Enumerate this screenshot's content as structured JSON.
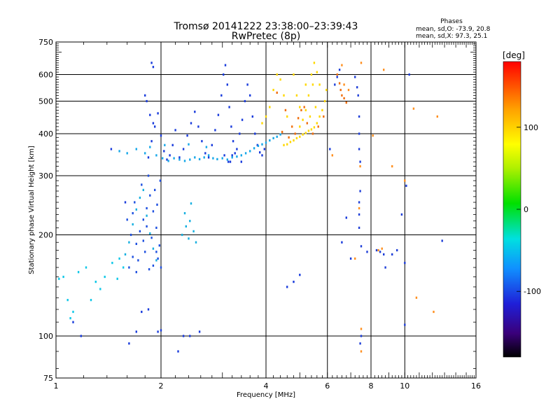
{
  "header": {
    "title": "Tromsø 20141222 23:38:00–23:39:43",
    "subtitle": "RwPretec (8p)",
    "phases_title": "Phases",
    "phases_o": "mean, sd,O: -73.9, 20.8",
    "phases_x": "mean, sd,X:  97.3, 25.1"
  },
  "chart_data": {
    "type": "scatter",
    "title": "Tromsø 20141222 23:38:00–23:39:43",
    "subtitle": "RwPretec (8p)",
    "xlabel": "Frequency [MHz]",
    "ylabel": "Stationary phase Virtual Height [km]",
    "x_scale": "log",
    "y_scale": "log",
    "xlim": [
      1,
      16
    ],
    "ylim": [
      75,
      750
    ],
    "x_major_ticks": [
      1,
      2,
      4,
      6,
      8,
      10,
      16
    ],
    "y_major_ticks": [
      75,
      100,
      200,
      300,
      400,
      500,
      600,
      750
    ],
    "grid": true,
    "colorbar": {
      "label": "[deg]",
      "range": [
        -180,
        180
      ],
      "ticks": [
        -100,
        0,
        100
      ],
      "colormap": "rainbow"
    },
    "series": [
      {
        "role": "lower-layer-cloud-A",
        "color": "#1e50e0",
        "points": [
          [
            1.62,
            160
          ],
          [
            1.66,
            172
          ],
          [
            1.7,
            188
          ],
          [
            1.74,
            205
          ],
          [
            1.78,
            222
          ],
          [
            1.82,
            240
          ],
          [
            1.86,
            262
          ],
          [
            1.9,
            235
          ],
          [
            1.94,
            210
          ],
          [
            1.98,
            186
          ],
          [
            1.64,
            200
          ],
          [
            1.72,
            168
          ],
          [
            1.8,
            178
          ],
          [
            1.88,
            196
          ],
          [
            1.96,
            170
          ],
          [
            1.68,
            250
          ],
          [
            1.76,
            282
          ],
          [
            1.84,
            300
          ],
          [
            1.92,
            272
          ],
          [
            1.6,
            222
          ],
          [
            1.7,
            155
          ],
          [
            1.85,
            158
          ],
          [
            1.95,
            246
          ],
          [
            1.99,
            290
          ],
          [
            2.0,
            160
          ],
          [
            1.78,
            192
          ],
          [
            1.9,
            162
          ],
          [
            1.66,
            232
          ],
          [
            1.82,
            212
          ],
          [
            1.94,
            178
          ]
        ]
      },
      {
        "role": "lower-layer-cloud-B",
        "color": "#18b0e0",
        "points": [
          [
            1.58,
            175
          ],
          [
            1.62,
            190
          ],
          [
            1.66,
            215
          ],
          [
            1.7,
            238
          ],
          [
            1.74,
            258
          ],
          [
            1.78,
            272
          ],
          [
            1.82,
            228
          ],
          [
            1.86,
            202
          ],
          [
            1.9,
            182
          ],
          [
            1.94,
            168
          ],
          [
            2.3,
            200
          ],
          [
            2.36,
            212
          ],
          [
            2.42,
            220
          ],
          [
            2.48,
            205
          ],
          [
            2.52,
            190
          ],
          [
            2.34,
            232
          ],
          [
            2.44,
            248
          ],
          [
            2.4,
            195
          ]
        ]
      },
      {
        "role": "low-frequency-scatter",
        "color": "#10c8e8",
        "points": [
          [
            1.02,
            148
          ],
          [
            1.05,
            150
          ],
          [
            1.08,
            128
          ],
          [
            1.1,
            113
          ],
          [
            1.12,
            118
          ],
          [
            1.16,
            155
          ],
          [
            1.22,
            160
          ],
          [
            1.3,
            145
          ],
          [
            1.38,
            150
          ],
          [
            1.45,
            165
          ],
          [
            1.52,
            170
          ],
          [
            1.56,
            160
          ],
          [
            1.5,
            148
          ],
          [
            1.26,
            128
          ],
          [
            1.34,
            138
          ]
        ]
      },
      {
        "role": "upper-layer-main-blue",
        "color": "#1a3cdc",
        "points": [
          [
            1.84,
            340
          ],
          [
            1.88,
            380
          ],
          [
            1.92,
            420
          ],
          [
            1.96,
            460
          ],
          [
            2.0,
            395
          ],
          [
            2.04,
            355
          ],
          [
            2.08,
            335
          ],
          [
            2.12,
            345
          ],
          [
            2.16,
            370
          ],
          [
            2.2,
            410
          ],
          [
            2.26,
            340
          ],
          [
            2.32,
            360
          ],
          [
            2.38,
            395
          ],
          [
            2.44,
            430
          ],
          [
            2.5,
            465
          ],
          [
            2.56,
            420
          ],
          [
            2.62,
            380
          ],
          [
            2.68,
            350
          ],
          [
            2.74,
            340
          ],
          [
            2.8,
            370
          ],
          [
            2.86,
            410
          ],
          [
            2.92,
            455
          ],
          [
            2.98,
            520
          ],
          [
            3.02,
            600
          ],
          [
            3.06,
            640
          ],
          [
            3.1,
            560
          ],
          [
            3.14,
            480
          ],
          [
            3.18,
            420
          ],
          [
            3.22,
            380
          ],
          [
            3.26,
            350
          ],
          [
            3.3,
            360
          ],
          [
            3.36,
            400
          ],
          [
            3.42,
            440
          ],
          [
            3.48,
            500
          ],
          [
            3.54,
            560
          ],
          [
            3.6,
            520
          ],
          [
            3.66,
            450
          ],
          [
            3.72,
            400
          ],
          [
            3.78,
            370
          ],
          [
            3.84,
            352
          ],
          [
            3.9,
            345
          ],
          [
            3.96,
            360
          ],
          [
            1.82,
            500
          ],
          [
            1.86,
            455
          ],
          [
            1.9,
            430
          ],
          [
            3.04,
            345
          ],
          [
            3.12,
            330
          ],
          [
            3.2,
            345
          ]
        ]
      },
      {
        "role": "upper-layer-main-cyan",
        "color": "#18a8e8",
        "points": [
          [
            1.8,
            350
          ],
          [
            1.86,
            365
          ],
          [
            1.94,
            345
          ],
          [
            2.02,
            338
          ],
          [
            2.1,
            332
          ],
          [
            2.18,
            338
          ],
          [
            2.26,
            335
          ],
          [
            2.34,
            332
          ],
          [
            2.42,
            335
          ],
          [
            2.5,
            340
          ],
          [
            2.58,
            336
          ],
          [
            2.66,
            340
          ],
          [
            2.74,
            345
          ],
          [
            2.82,
            338
          ],
          [
            2.9,
            336
          ],
          [
            3.0,
            338
          ],
          [
            3.1,
            335
          ],
          [
            3.2,
            340
          ],
          [
            3.3,
            342
          ],
          [
            3.4,
            345
          ],
          [
            3.5,
            350
          ],
          [
            3.6,
            355
          ],
          [
            3.7,
            362
          ],
          [
            3.8,
            368
          ],
          [
            3.9,
            372
          ],
          [
            4.0,
            376
          ],
          [
            4.1,
            382
          ],
          [
            4.2,
            388
          ],
          [
            4.3,
            392
          ],
          [
            4.4,
            398
          ],
          [
            1.6,
            350
          ],
          [
            1.52,
            355
          ],
          [
            1.7,
            360
          ],
          [
            2.05,
            370
          ],
          [
            2.4,
            372
          ],
          [
            2.7,
            365
          ]
        ]
      },
      {
        "role": "upper-layer-warm",
        "color": "#ffd800",
        "points": [
          [
            4.5,
            370
          ],
          [
            4.6,
            372
          ],
          [
            4.7,
            378
          ],
          [
            4.8,
            382
          ],
          [
            4.9,
            388
          ],
          [
            5.0,
            392
          ],
          [
            5.1,
            398
          ],
          [
            5.2,
            402
          ],
          [
            5.3,
            408
          ],
          [
            5.4,
            412
          ],
          [
            5.5,
            418
          ],
          [
            5.6,
            430
          ],
          [
            5.7,
            450
          ],
          [
            5.8,
            470
          ],
          [
            5.9,
            500
          ],
          [
            5.96,
            540
          ],
          [
            5.7,
            560
          ],
          [
            5.6,
            610
          ],
          [
            5.5,
            650
          ],
          [
            5.4,
            600
          ],
          [
            5.3,
            520
          ],
          [
            5.2,
            470
          ],
          [
            5.1,
            440
          ],
          [
            5.0,
            420
          ],
          [
            4.6,
            450
          ],
          [
            4.5,
            520
          ],
          [
            4.4,
            580
          ],
          [
            4.3,
            600
          ],
          [
            4.2,
            540
          ],
          [
            4.1,
            480
          ],
          [
            4.0,
            450
          ],
          [
            3.9,
            430
          ],
          [
            4.8,
            600
          ],
          [
            4.9,
            520
          ],
          [
            5.0,
            480
          ],
          [
            5.2,
            560
          ],
          [
            5.45,
            560
          ],
          [
            5.55,
            480
          ],
          [
            5.35,
            450
          ]
        ]
      },
      {
        "role": "upper-layer-orange-red",
        "color": "#f07010",
        "points": [
          [
            4.3,
            530
          ],
          [
            4.55,
            470
          ],
          [
            4.75,
            420
          ],
          [
            4.95,
            445
          ],
          [
            5.15,
            480
          ],
          [
            5.25,
            430
          ],
          [
            5.45,
            400
          ],
          [
            5.65,
            420
          ],
          [
            5.85,
            450
          ],
          [
            4.45,
            405
          ],
          [
            4.65,
            390
          ],
          [
            4.85,
            400
          ],
          [
            5.05,
            470
          ],
          [
            6.4,
            600
          ],
          [
            6.5,
            565
          ],
          [
            6.55,
            540
          ],
          [
            6.6,
            520
          ],
          [
            6.7,
            510
          ],
          [
            6.8,
            495
          ]
        ]
      },
      {
        "role": "high-frequency-sparse-blue",
        "color": "#2040d8",
        "points": [
          [
            6.3,
            560
          ],
          [
            6.4,
            590
          ],
          [
            6.5,
            620
          ],
          [
            7.2,
            590
          ],
          [
            7.3,
            550
          ],
          [
            7.35,
            520
          ],
          [
            7.4,
            450
          ],
          [
            7.4,
            400
          ],
          [
            7.4,
            360
          ],
          [
            7.45,
            330
          ],
          [
            7.45,
            270
          ],
          [
            7.4,
            250
          ],
          [
            7.4,
            230
          ],
          [
            7.4,
            210
          ],
          [
            7.5,
            185
          ],
          [
            7.5,
            100
          ],
          [
            7.45,
            95
          ],
          [
            7.8,
            178
          ],
          [
            8.3,
            180
          ],
          [
            8.5,
            178
          ],
          [
            8.7,
            175
          ],
          [
            8.8,
            160
          ],
          [
            9.2,
            175
          ],
          [
            9.5,
            180
          ],
          [
            9.8,
            230
          ],
          [
            10.0,
            165
          ],
          [
            10.1,
            280
          ],
          [
            10.0,
            108
          ],
          [
            12.8,
            192
          ],
          [
            10.3,
            600
          ]
        ]
      },
      {
        "role": "high-frequency-sparse-warm",
        "color": "#ff9020",
        "points": [
          [
            6.6,
            640
          ],
          [
            6.7,
            560
          ],
          [
            7.5,
            650
          ],
          [
            7.45,
            320
          ],
          [
            7.4,
            240
          ],
          [
            7.5,
            90
          ],
          [
            7.5,
            105
          ],
          [
            8.1,
            395
          ],
          [
            8.7,
            620
          ],
          [
            9.2,
            320
          ],
          [
            10.0,
            290
          ],
          [
            10.6,
            475
          ],
          [
            12.4,
            450
          ],
          [
            12.1,
            118
          ],
          [
            10.8,
            130
          ],
          [
            8.4,
            180
          ],
          [
            8.6,
            182
          ],
          [
            7.2,
            170
          ],
          [
            6.2,
            345
          ],
          [
            6.9,
            540
          ]
        ]
      },
      {
        "role": "isolated-points",
        "color": "#1a3cdc",
        "points": [
          [
            1.9,
            632
          ],
          [
            1.88,
            650
          ],
          [
            1.8,
            520
          ],
          [
            1.7,
            103
          ],
          [
            1.96,
            103
          ],
          [
            2.0,
            104
          ],
          [
            2.32,
            100
          ],
          [
            2.42,
            100
          ],
          [
            2.58,
            103
          ],
          [
            3.16,
            330
          ],
          [
            3.4,
            330
          ],
          [
            4.6,
            140
          ],
          [
            4.8,
            145
          ],
          [
            5.0,
            152
          ],
          [
            6.1,
            360
          ],
          [
            6.6,
            190
          ],
          [
            6.8,
            225
          ],
          [
            7.0,
            170
          ],
          [
            1.62,
            95
          ],
          [
            1.76,
            118
          ],
          [
            1.84,
            120
          ],
          [
            2.24,
            90
          ],
          [
            1.58,
            250
          ],
          [
            1.44,
            360
          ],
          [
            1.12,
            110
          ],
          [
            1.18,
            100
          ]
        ]
      }
    ]
  }
}
